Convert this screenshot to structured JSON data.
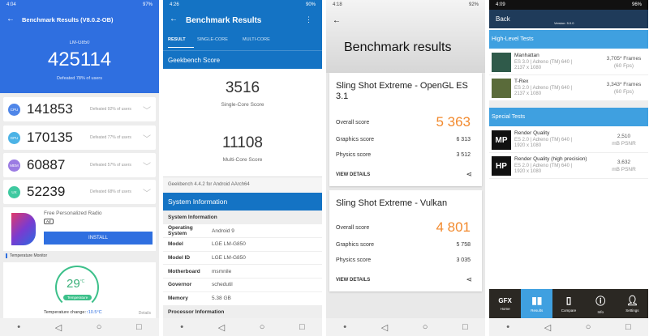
{
  "antutu": {
    "time": "4:04",
    "battery": "97%",
    "title": "Benchmark Results (V8.0.2-OB)",
    "device": "LM-G850",
    "total": "425114",
    "defeated": "Defeated 78% of users",
    "rows": [
      {
        "badge": "CPU",
        "value": "141853",
        "defeated": "Defeated 92% of users",
        "color": "#4f86e8"
      },
      {
        "badge": "GPU",
        "value": "170135",
        "defeated": "Defeated 77% of users",
        "color": "#4cb3e6"
      },
      {
        "badge": "MEM",
        "value": "60887",
        "defeated": "Defeated 57% of users",
        "color": "#9b7be3"
      },
      {
        "badge": "UX",
        "value": "52239",
        "defeated": "Defeated 68% of users",
        "color": "#3ec9a0"
      }
    ],
    "ad": {
      "title": "Free Personalized Radio",
      "badge": "Ad",
      "button": "INSTALL"
    },
    "temp": {
      "section": "Temperature Monitor",
      "value": "29",
      "unit": "°C",
      "label": "Temperature",
      "change_label": "Temperature change:",
      "change_value": "↑10.5°C",
      "details": "Details"
    }
  },
  "geekbench": {
    "time": "4:26",
    "battery": "90%",
    "title": "Benchmark Results",
    "tabs": [
      "RESULT",
      "SINGLE-CORE",
      "MULTI-CORE"
    ],
    "score_header": "Geekbench Score",
    "single": "3516",
    "single_label": "Single-Core Score",
    "multi": "11108",
    "multi_label": "Multi-Core Score",
    "version": "Geekbench 4.4.2 for Android AArch64",
    "sysinfo_header": "System Information",
    "sysinfo_sub": "System Information",
    "info": [
      {
        "k": "Operating System",
        "v": "Android 9"
      },
      {
        "k": "Model",
        "v": "LGE LM-G850"
      },
      {
        "k": "Model ID",
        "v": "LGE LM-G850"
      },
      {
        "k": "Motherboard",
        "v": "msmnile"
      },
      {
        "k": "Governor",
        "v": "schedutil"
      },
      {
        "k": "Memory",
        "v": "5.38 GB"
      }
    ],
    "proc_header": "Processor Information"
  },
  "threedmark": {
    "time": "4:18",
    "battery": "92%",
    "title": "Benchmark results",
    "cards": [
      {
        "title": "Sling Shot Extreme - OpenGL ES 3.1",
        "overall_label": "Overall score",
        "overall": "5 363",
        "graphics_label": "Graphics score",
        "graphics": "6 313",
        "physics_label": "Physics score",
        "physics": "3 512",
        "details": "VIEW DETAILS"
      },
      {
        "title": "Sling Shot Extreme - Vulkan",
        "overall_label": "Overall score",
        "overall": "4 801",
        "graphics_label": "Graphics score",
        "graphics": "5 758",
        "physics_label": "Physics score",
        "physics": "3 035",
        "details": "VIEW DETAILS"
      }
    ]
  },
  "gfx": {
    "time": "4:09",
    "battery": "96%",
    "back": "Back",
    "version": "Version: 5.0.0",
    "high_level": "High-Level Tests",
    "special": "Special Tests",
    "tests": [
      {
        "name": "Manhattan",
        "api": "ES 3.0 | Adreno (TM) 640 |",
        "res": "2137 x 1080",
        "score": "3,705* Frames",
        "sub": "(60 Fps)"
      },
      {
        "name": "T-Rex",
        "api": "ES 2.0 | Adreno (TM) 640 |",
        "res": "2137 x 1080",
        "score": "3,343* Frames",
        "sub": "(60 Fps)"
      },
      {
        "name": "Render Quality",
        "api": "ES 2.0 | Adreno (TM) 640 |",
        "res": "1920 x 1080",
        "score": "2,510",
        "sub": "mB PSNR",
        "icon": "MP"
      },
      {
        "name": "Render Quality (high precision)",
        "api": "ES 2.0 | Adreno (TM) 640 |",
        "res": "1920 x 1080",
        "score": "3,632",
        "sub": "mB PSNR",
        "icon": "HP"
      }
    ],
    "nav": [
      "Home",
      "Results",
      "Compare",
      "Info",
      "Settings"
    ],
    "nav_gfx": "GFX"
  }
}
